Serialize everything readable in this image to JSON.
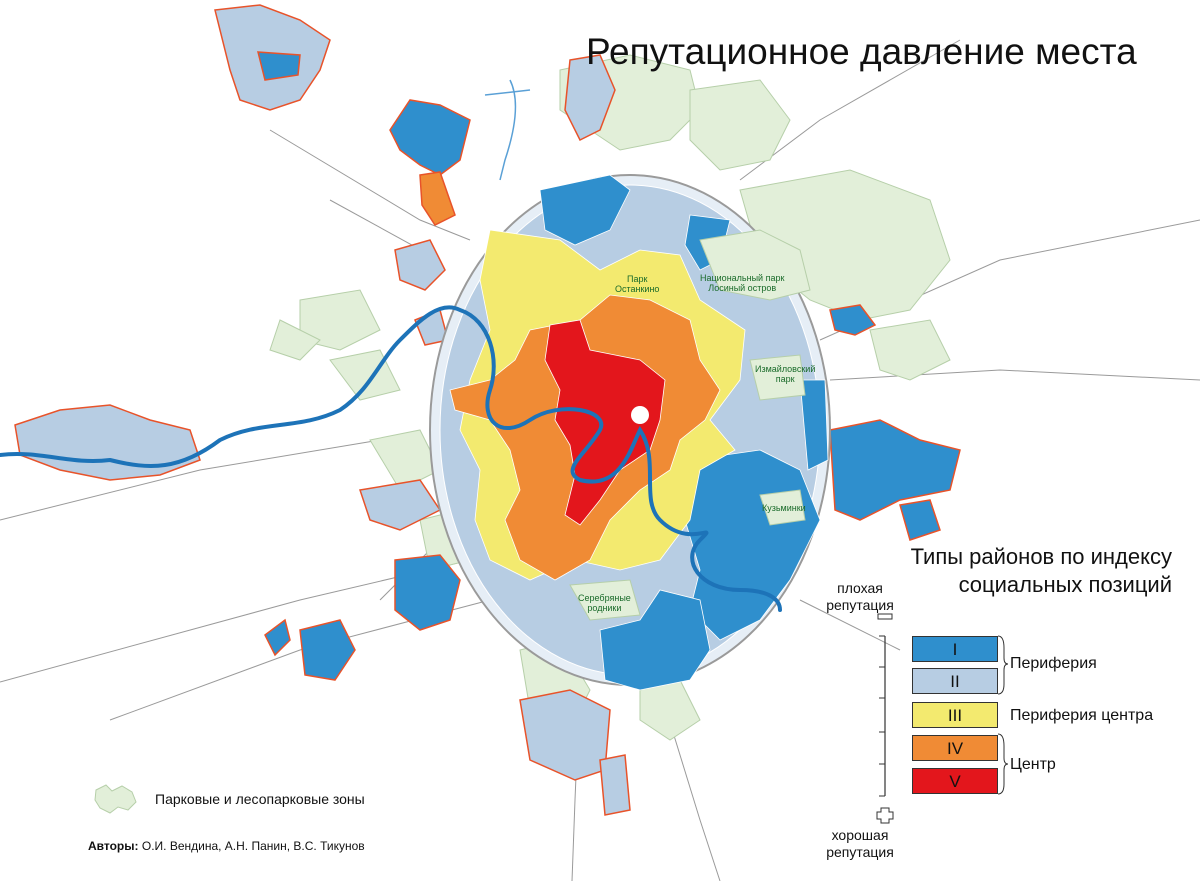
{
  "title": "Репутационное давление места",
  "legend": {
    "title_line1": "Типы районов по индексу",
    "title_line2": "социальных позиций",
    "bad_line1": "плохая",
    "bad_line2": "репутация",
    "good_line1": "хорошая",
    "good_line2": "репутация",
    "types": [
      {
        "label": "I",
        "color": "#2f8fcd"
      },
      {
        "label": "II",
        "color": "#b7cde3"
      },
      {
        "label": "III",
        "color": "#f3ea6f"
      },
      {
        "label": "IV",
        "color": "#f08b35"
      },
      {
        "label": "V",
        "color": "#e3161c"
      }
    ],
    "groups": [
      {
        "label": "Периферия"
      },
      {
        "label": "Периферия центра"
      },
      {
        "label": "Центр"
      }
    ]
  },
  "park_legend": "Парковые и лесопарковые зоны",
  "authors_label": "Авторы:",
  "authors_names": "О.И. Вендина, А.Н. Панин, В.С. Тикунов",
  "park_labels": {
    "ostankino_1": "Парк",
    "ostankino_2": "Останкино",
    "losiny_1": "Национальный парк",
    "losiny_2": "Лосиный остров",
    "izmailovo_1": "Измайловский",
    "izmailovo_2": "парк",
    "kuzminki": "Кузьминки",
    "serebryanye_1": "Серебряные",
    "serebryanye_2": "родники"
  },
  "colors": {
    "park": "#e2efd9",
    "park_edge": "#b6cfa9",
    "boundary": "#e8532a",
    "river": "#1d73b8",
    "mkad": "#e6eef6",
    "road": "#9a9a9a"
  }
}
